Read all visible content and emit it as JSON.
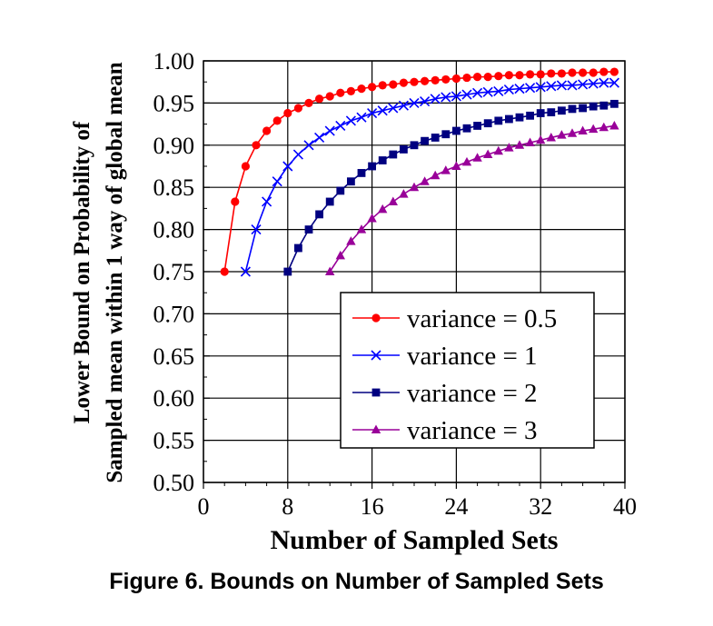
{
  "caption": "Figure 6. Bounds on Number of Sampled Sets",
  "chart_data": {
    "type": "line",
    "title": "",
    "xlabel": "Number of Sampled Sets",
    "ylabel": [
      "Lower Bound on Probability of",
      "Sampled mean within 1 way of global mean"
    ],
    "xlim": [
      0,
      40
    ],
    "ylim": [
      0.5,
      1.0
    ],
    "xticks": [
      0,
      8,
      16,
      24,
      32,
      40
    ],
    "yticks": [
      "0.50",
      "0.55",
      "0.60",
      "0.65",
      "0.70",
      "0.75",
      "0.80",
      "0.85",
      "0.90",
      "0.95",
      "1.00"
    ],
    "grid": true,
    "legend_position": "center-right",
    "series": [
      {
        "name": "variance = 0.5",
        "variance": 0.5,
        "color": "#ff0000",
        "marker": "circle",
        "x": [
          2,
          3,
          4,
          5,
          6,
          7,
          8,
          9,
          10,
          11,
          12,
          13,
          14,
          15,
          16,
          17,
          18,
          19,
          20,
          21,
          22,
          23,
          24,
          25,
          26,
          27,
          28,
          29,
          30,
          31,
          32,
          33,
          34,
          35,
          36,
          37,
          38,
          39
        ],
        "y": [
          0.75,
          0.833,
          0.875,
          0.9,
          0.917,
          0.929,
          0.938,
          0.944,
          0.95,
          0.955,
          0.958,
          0.962,
          0.964,
          0.967,
          0.969,
          0.971,
          0.972,
          0.974,
          0.975,
          0.976,
          0.977,
          0.978,
          0.979,
          0.98,
          0.981,
          0.981,
          0.982,
          0.983,
          0.983,
          0.984,
          0.984,
          0.985,
          0.985,
          0.986,
          0.986,
          0.986,
          0.987,
          0.987
        ]
      },
      {
        "name": "variance = 1",
        "variance": 1,
        "color": "#0000ff",
        "marker": "x",
        "x": [
          4,
          5,
          6,
          7,
          8,
          9,
          10,
          11,
          12,
          13,
          14,
          15,
          16,
          17,
          18,
          19,
          20,
          21,
          22,
          23,
          24,
          25,
          26,
          27,
          28,
          29,
          30,
          31,
          32,
          33,
          34,
          35,
          36,
          37,
          38,
          39
        ],
        "y": [
          0.75,
          0.8,
          0.833,
          0.857,
          0.875,
          0.889,
          0.9,
          0.909,
          0.917,
          0.923,
          0.929,
          0.933,
          0.938,
          0.941,
          0.944,
          0.947,
          0.95,
          0.952,
          0.955,
          0.957,
          0.958,
          0.96,
          0.962,
          0.963,
          0.964,
          0.966,
          0.967,
          0.968,
          0.969,
          0.97,
          0.971,
          0.971,
          0.972,
          0.973,
          0.974,
          0.974
        ]
      },
      {
        "name": "variance = 2",
        "variance": 2,
        "color": "#000080",
        "marker": "square",
        "x": [
          8,
          9,
          10,
          11,
          12,
          13,
          14,
          15,
          16,
          17,
          18,
          19,
          20,
          21,
          22,
          23,
          24,
          25,
          26,
          27,
          28,
          29,
          30,
          31,
          32,
          33,
          34,
          35,
          36,
          37,
          38,
          39
        ],
        "y": [
          0.75,
          0.778,
          0.8,
          0.818,
          0.833,
          0.846,
          0.857,
          0.867,
          0.875,
          0.882,
          0.889,
          0.895,
          0.9,
          0.905,
          0.909,
          0.913,
          0.917,
          0.92,
          0.923,
          0.926,
          0.929,
          0.931,
          0.933,
          0.935,
          0.938,
          0.939,
          0.941,
          0.943,
          0.944,
          0.946,
          0.947,
          0.949
        ]
      },
      {
        "name": "variance = 3",
        "variance": 3,
        "color": "#990099",
        "marker": "triangle",
        "x": [
          12,
          13,
          14,
          15,
          16,
          17,
          18,
          19,
          20,
          21,
          22,
          23,
          24,
          25,
          26,
          27,
          28,
          29,
          30,
          31,
          32,
          33,
          34,
          35,
          36,
          37,
          38,
          39
        ],
        "y": [
          0.75,
          0.769,
          0.786,
          0.8,
          0.813,
          0.824,
          0.833,
          0.842,
          0.85,
          0.857,
          0.864,
          0.87,
          0.875,
          0.88,
          0.885,
          0.889,
          0.893,
          0.897,
          0.9,
          0.903,
          0.906,
          0.909,
          0.912,
          0.914,
          0.917,
          0.919,
          0.921,
          0.923
        ]
      }
    ]
  }
}
